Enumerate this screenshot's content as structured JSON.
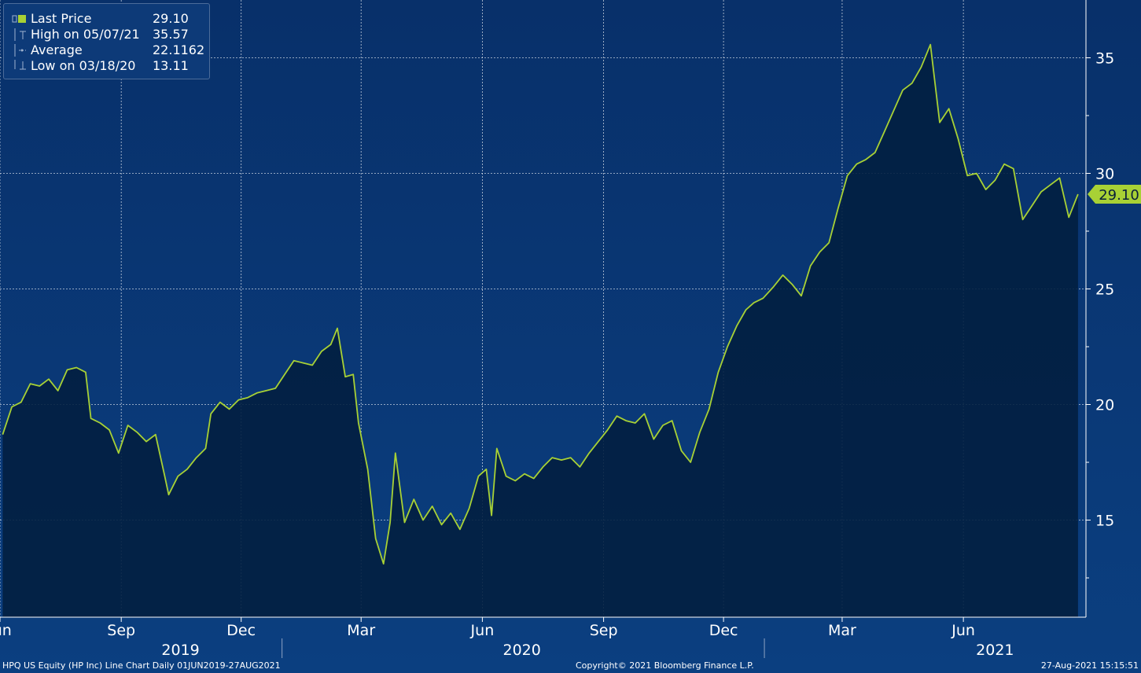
{
  "legend": {
    "items": [
      {
        "label": "Last Price",
        "value": "29.10",
        "symbol": "square"
      },
      {
        "label": "High on 05/07/21",
        "value": "35.57",
        "symbol": "high-marker"
      },
      {
        "label": "Average",
        "value": "22.1162",
        "symbol": "average-marker"
      },
      {
        "label": "Low on 03/18/20",
        "value": "13.11",
        "symbol": "low-marker"
      }
    ]
  },
  "footer": {
    "left": "HPQ US Equity (HP Inc) Line Chart  Daily 01JUN2019-27AUG2021",
    "center": "Copyright© 2021 Bloomberg Finance L.P.",
    "right": "27-Aug-2021 15:15:51"
  },
  "colors": {
    "background_top": "#08306a",
    "background_bottom": "#0b3f80",
    "area_fill": "#021f40",
    "line": "#a8d135",
    "grid": "#ffffff",
    "last_price_tag": "#a8d135"
  },
  "chart_data": {
    "type": "area",
    "series": [
      {
        "name": "Last Price",
        "points": [
          [
            "2019-06-03",
            18.7
          ],
          [
            "2019-06-10",
            19.9
          ],
          [
            "2019-06-17",
            20.1
          ],
          [
            "2019-06-24",
            20.9
          ],
          [
            "2019-07-01",
            20.8
          ],
          [
            "2019-07-08",
            21.1
          ],
          [
            "2019-07-15",
            20.6
          ],
          [
            "2019-07-22",
            21.5
          ],
          [
            "2019-07-29",
            21.6
          ],
          [
            "2019-08-05",
            21.4
          ],
          [
            "2019-08-09",
            19.4
          ],
          [
            "2019-08-16",
            19.2
          ],
          [
            "2019-08-23",
            18.9
          ],
          [
            "2019-08-30",
            17.9
          ],
          [
            "2019-09-06",
            19.1
          ],
          [
            "2019-09-13",
            18.8
          ],
          [
            "2019-09-20",
            18.4
          ],
          [
            "2019-09-27",
            18.7
          ],
          [
            "2019-10-04",
            16.9
          ],
          [
            "2019-10-07",
            16.1
          ],
          [
            "2019-10-14",
            16.9
          ],
          [
            "2019-10-21",
            17.2
          ],
          [
            "2019-10-28",
            17.7
          ],
          [
            "2019-11-04",
            18.1
          ],
          [
            "2019-11-08",
            19.6
          ],
          [
            "2019-11-15",
            20.1
          ],
          [
            "2019-11-22",
            19.8
          ],
          [
            "2019-11-29",
            20.2
          ],
          [
            "2019-12-06",
            20.3
          ],
          [
            "2019-12-13",
            20.5
          ],
          [
            "2019-12-20",
            20.6
          ],
          [
            "2019-12-27",
            20.7
          ],
          [
            "2020-01-03",
            21.3
          ],
          [
            "2020-01-10",
            21.9
          ],
          [
            "2020-01-17",
            21.8
          ],
          [
            "2020-01-24",
            21.7
          ],
          [
            "2020-01-31",
            22.3
          ],
          [
            "2020-02-07",
            22.6
          ],
          [
            "2020-02-12",
            23.3
          ],
          [
            "2020-02-18",
            21.2
          ],
          [
            "2020-02-24",
            21.3
          ],
          [
            "2020-02-28",
            19.2
          ],
          [
            "2020-03-06",
            17.2
          ],
          [
            "2020-03-12",
            14.2
          ],
          [
            "2020-03-18",
            13.11
          ],
          [
            "2020-03-23",
            14.9
          ],
          [
            "2020-03-27",
            17.9
          ],
          [
            "2020-04-03",
            14.9
          ],
          [
            "2020-04-10",
            15.9
          ],
          [
            "2020-04-17",
            15.0
          ],
          [
            "2020-04-24",
            15.6
          ],
          [
            "2020-05-01",
            14.8
          ],
          [
            "2020-05-08",
            15.3
          ],
          [
            "2020-05-15",
            14.6
          ],
          [
            "2020-05-22",
            15.5
          ],
          [
            "2020-05-29",
            16.9
          ],
          [
            "2020-06-04",
            17.2
          ],
          [
            "2020-06-08",
            15.2
          ],
          [
            "2020-06-12",
            18.1
          ],
          [
            "2020-06-19",
            16.9
          ],
          [
            "2020-06-26",
            16.7
          ],
          [
            "2020-07-03",
            17.0
          ],
          [
            "2020-07-10",
            16.8
          ],
          [
            "2020-07-17",
            17.3
          ],
          [
            "2020-07-24",
            17.7
          ],
          [
            "2020-07-31",
            17.6
          ],
          [
            "2020-08-07",
            17.7
          ],
          [
            "2020-08-14",
            17.3
          ],
          [
            "2020-08-21",
            17.9
          ],
          [
            "2020-08-28",
            18.4
          ],
          [
            "2020-09-04",
            18.9
          ],
          [
            "2020-09-11",
            19.5
          ],
          [
            "2020-09-18",
            19.3
          ],
          [
            "2020-09-25",
            19.2
          ],
          [
            "2020-10-02",
            19.6
          ],
          [
            "2020-10-09",
            18.5
          ],
          [
            "2020-10-16",
            19.1
          ],
          [
            "2020-10-23",
            19.3
          ],
          [
            "2020-10-30",
            18.0
          ],
          [
            "2020-11-06",
            17.5
          ],
          [
            "2020-11-13",
            18.8
          ],
          [
            "2020-11-20",
            19.8
          ],
          [
            "2020-11-27",
            21.4
          ],
          [
            "2020-12-04",
            22.5
          ],
          [
            "2020-12-11",
            23.4
          ],
          [
            "2020-12-18",
            24.1
          ],
          [
            "2020-12-24",
            24.4
          ],
          [
            "2020-12-31",
            24.6
          ],
          [
            "2021-01-08",
            25.1
          ],
          [
            "2021-01-15",
            25.6
          ],
          [
            "2021-01-22",
            25.2
          ],
          [
            "2021-01-29",
            24.7
          ],
          [
            "2021-02-05",
            26.0
          ],
          [
            "2021-02-12",
            26.6
          ],
          [
            "2021-02-19",
            27.0
          ],
          [
            "2021-02-26",
            28.5
          ],
          [
            "2021-03-05",
            29.9
          ],
          [
            "2021-03-12",
            30.4
          ],
          [
            "2021-03-19",
            30.6
          ],
          [
            "2021-03-26",
            30.9
          ],
          [
            "2021-04-02",
            31.8
          ],
          [
            "2021-04-09",
            32.7
          ],
          [
            "2021-04-16",
            33.6
          ],
          [
            "2021-04-23",
            33.9
          ],
          [
            "2021-04-30",
            34.6
          ],
          [
            "2021-05-07",
            35.57
          ],
          [
            "2021-05-14",
            32.2
          ],
          [
            "2021-05-21",
            32.8
          ],
          [
            "2021-05-28",
            31.5
          ],
          [
            "2021-06-04",
            29.9
          ],
          [
            "2021-06-11",
            30.0
          ],
          [
            "2021-06-18",
            29.3
          ],
          [
            "2021-06-25",
            29.7
          ],
          [
            "2021-07-02",
            30.4
          ],
          [
            "2021-07-09",
            30.2
          ],
          [
            "2021-07-16",
            28.0
          ],
          [
            "2021-07-23",
            28.6
          ],
          [
            "2021-07-30",
            29.2
          ],
          [
            "2021-08-06",
            29.5
          ],
          [
            "2021-08-13",
            29.8
          ],
          [
            "2021-08-20",
            28.1
          ],
          [
            "2021-08-27",
            29.1
          ]
        ]
      }
    ],
    "ylim": [
      10.8,
      37.5
    ],
    "yticks": [
      15,
      20,
      25,
      30,
      35
    ],
    "xlim": [
      "2019-06-01",
      "2021-09-02"
    ],
    "month_ticks": [
      {
        "date": "2019-06-01",
        "label": "Jun"
      },
      {
        "date": "2019-09-01",
        "label": "Sep"
      },
      {
        "date": "2019-12-01",
        "label": "Dec"
      },
      {
        "date": "2020-03-01",
        "label": "Mar"
      },
      {
        "date": "2020-06-01",
        "label": "Jun"
      },
      {
        "date": "2020-09-01",
        "label": "Sep"
      },
      {
        "date": "2020-12-01",
        "label": "Dec"
      },
      {
        "date": "2021-03-01",
        "label": "Mar"
      },
      {
        "date": "2021-06-01",
        "label": "Jun"
      }
    ],
    "year_labels": [
      {
        "date": "2019-10-16",
        "label": "2019"
      },
      {
        "date": "2020-07-01",
        "label": "2020"
      },
      {
        "date": "2021-06-25",
        "label": "2021"
      }
    ],
    "year_separators": [
      "2020-01-01",
      "2021-01-01"
    ],
    "last_price_tag": "29.10",
    "grid": true,
    "y_axis_position": "right",
    "legend_position": "top-left"
  }
}
